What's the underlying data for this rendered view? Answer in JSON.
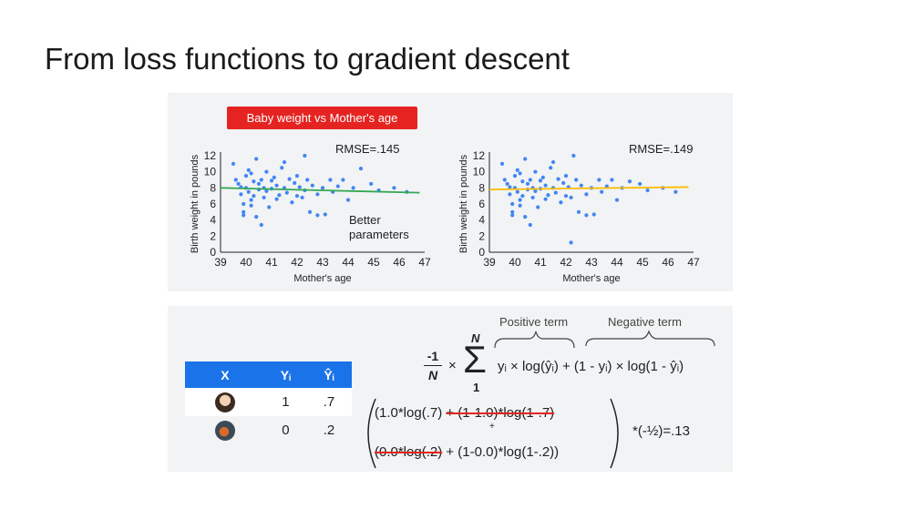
{
  "title": "From loss functions to gradient descent",
  "badge": "Baby weight vs Mother's age",
  "colors": {
    "accent_blue": "#1a73e8",
    "badge_red": "#e52421",
    "green_line": "#34a853",
    "yellow_line": "#fbbc04",
    "dot": "#4285f4"
  },
  "chart_data": [
    {
      "type": "scatter",
      "xlabel": "Mother's age",
      "ylabel": "Birth weight in pounds",
      "xlim": [
        39,
        47
      ],
      "ylim": [
        0,
        12
      ],
      "xticks": [
        39,
        40,
        41,
        42,
        43,
        44,
        45,
        46,
        47
      ],
      "yticks": [
        0,
        2,
        4,
        6,
        8,
        10,
        12
      ],
      "annotation": "RMSE=.145",
      "note": [
        "Better",
        "parameters"
      ],
      "fit_line": {
        "x": [
          39,
          46.8
        ],
        "y": [
          8.0,
          7.4
        ],
        "color": "#34a853"
      },
      "points": [
        [
          39.5,
          11.0
        ],
        [
          39.6,
          9.0
        ],
        [
          39.7,
          8.5
        ],
        [
          39.8,
          8.1
        ],
        [
          39.8,
          7.2
        ],
        [
          39.9,
          6.0
        ],
        [
          39.9,
          5.0
        ],
        [
          40.0,
          9.5
        ],
        [
          40.0,
          8.0
        ],
        [
          40.1,
          7.5
        ],
        [
          40.1,
          10.2
        ],
        [
          40.2,
          6.5
        ],
        [
          40.2,
          9.8
        ],
        [
          40.3,
          8.8
        ],
        [
          40.3,
          7.0
        ],
        [
          40.4,
          4.4
        ],
        [
          40.4,
          11.6
        ],
        [
          40.5,
          8.5
        ],
        [
          40.5,
          7.8
        ],
        [
          40.6,
          3.4
        ],
        [
          40.6,
          9.0
        ],
        [
          40.7,
          6.8
        ],
        [
          40.7,
          8.0
        ],
        [
          40.8,
          10.0
        ],
        [
          40.8,
          7.6
        ],
        [
          40.9,
          5.6
        ],
        [
          41.0,
          8.9
        ],
        [
          41.0,
          7.9
        ],
        [
          41.1,
          9.3
        ],
        [
          41.2,
          6.6
        ],
        [
          41.2,
          8.3
        ],
        [
          41.3,
          7.1
        ],
        [
          41.4,
          10.5
        ],
        [
          41.5,
          8.0
        ],
        [
          41.6,
          7.4
        ],
        [
          41.7,
          9.1
        ],
        [
          41.8,
          6.2
        ],
        [
          41.9,
          8.6
        ],
        [
          42.0,
          7.0
        ],
        [
          42.0,
          9.5
        ],
        [
          42.1,
          8.1
        ],
        [
          42.2,
          6.8
        ],
        [
          42.3,
          12.0
        ],
        [
          42.3,
          7.7
        ],
        [
          42.4,
          9.0
        ],
        [
          42.5,
          5.0
        ],
        [
          42.6,
          8.3
        ],
        [
          42.8,
          7.2
        ],
        [
          43.0,
          8.0
        ],
        [
          43.1,
          4.7
        ],
        [
          43.3,
          9.0
        ],
        [
          43.4,
          7.5
        ],
        [
          43.6,
          8.2
        ],
        [
          43.8,
          9.0
        ],
        [
          44.0,
          6.5
        ],
        [
          44.2,
          8.0
        ],
        [
          44.5,
          10.4
        ],
        [
          44.9,
          8.5
        ],
        [
          45.2,
          7.7
        ],
        [
          45.8,
          8.0
        ],
        [
          46.3,
          7.5
        ],
        [
          39.9,
          4.6
        ],
        [
          40.2,
          5.8
        ],
        [
          41.5,
          11.2
        ],
        [
          42.8,
          4.6
        ]
      ]
    },
    {
      "type": "scatter",
      "xlabel": "Mother's age",
      "ylabel": "Birth weight in pounds",
      "xlim": [
        39,
        47
      ],
      "ylim": [
        0,
        12
      ],
      "xticks": [
        39,
        40,
        41,
        42,
        43,
        44,
        45,
        46,
        47
      ],
      "yticks": [
        0,
        2,
        4,
        6,
        8,
        10,
        12
      ],
      "annotation": "RMSE=.149",
      "fit_line": {
        "x": [
          39,
          46.8
        ],
        "y": [
          7.8,
          8.1
        ],
        "color": "#fbbc04"
      },
      "points": [
        [
          39.5,
          11.0
        ],
        [
          39.6,
          9.0
        ],
        [
          39.7,
          8.5
        ],
        [
          39.8,
          8.1
        ],
        [
          39.8,
          7.2
        ],
        [
          39.9,
          6.0
        ],
        [
          39.9,
          5.0
        ],
        [
          40.0,
          9.5
        ],
        [
          40.0,
          8.0
        ],
        [
          40.1,
          7.5
        ],
        [
          40.1,
          10.2
        ],
        [
          40.2,
          6.5
        ],
        [
          40.2,
          9.8
        ],
        [
          40.3,
          8.8
        ],
        [
          40.3,
          7.0
        ],
        [
          40.4,
          4.4
        ],
        [
          40.4,
          11.6
        ],
        [
          40.5,
          8.5
        ],
        [
          40.5,
          7.8
        ],
        [
          40.6,
          3.4
        ],
        [
          40.6,
          9.0
        ],
        [
          40.7,
          6.8
        ],
        [
          40.7,
          8.0
        ],
        [
          40.8,
          10.0
        ],
        [
          40.8,
          7.6
        ],
        [
          40.9,
          5.6
        ],
        [
          41.0,
          8.9
        ],
        [
          41.0,
          7.9
        ],
        [
          41.1,
          9.3
        ],
        [
          41.2,
          6.6
        ],
        [
          41.2,
          8.3
        ],
        [
          41.3,
          7.1
        ],
        [
          41.4,
          10.5
        ],
        [
          41.5,
          8.0
        ],
        [
          41.6,
          7.4
        ],
        [
          41.7,
          9.1
        ],
        [
          41.8,
          6.2
        ],
        [
          41.9,
          8.6
        ],
        [
          42.0,
          7.0
        ],
        [
          42.0,
          9.5
        ],
        [
          42.1,
          8.1
        ],
        [
          42.2,
          6.8
        ],
        [
          42.3,
          12.0
        ],
        [
          42.2,
          1.2
        ],
        [
          42.4,
          9.0
        ],
        [
          42.5,
          5.0
        ],
        [
          42.6,
          8.3
        ],
        [
          42.8,
          7.2
        ],
        [
          43.0,
          8.0
        ],
        [
          43.1,
          4.7
        ],
        [
          43.3,
          9.0
        ],
        [
          43.4,
          7.5
        ],
        [
          43.6,
          8.2
        ],
        [
          43.8,
          9.0
        ],
        [
          44.0,
          6.5
        ],
        [
          44.2,
          8.0
        ],
        [
          44.5,
          8.8
        ],
        [
          44.9,
          8.5
        ],
        [
          45.2,
          7.7
        ],
        [
          45.8,
          8.0
        ],
        [
          46.3,
          7.5
        ],
        [
          39.9,
          4.6
        ],
        [
          40.2,
          5.8
        ],
        [
          41.5,
          11.2
        ],
        [
          42.8,
          4.6
        ]
      ]
    }
  ],
  "formula": {
    "numerator": "-1",
    "denominator": "N",
    "times": "×",
    "sigma": "Σ",
    "sum_top": "N",
    "sum_bottom": "1",
    "positive_label": "Positive term",
    "negative_label": "Negative term",
    "expression": "yᵢ × log(ŷᵢ) + (1 - yᵢ) × log(1 - ŷᵢ)",
    "line1_a": "(1.0*log(.7) ",
    "line1_strike": "+ (1-1.0)*log(1-.7)",
    "plus": "+",
    "line2_strike": "(0.0*log(.2)",
    "line2_b": " + (1-0.0)*log(1-.2))",
    "result": "*(-½)=.13"
  },
  "table": {
    "headers": [
      "X",
      "Yᵢ",
      "Ŷᵢ"
    ],
    "rows": [
      {
        "avatar": "child-photo-icon",
        "y": "1",
        "yhat": ".7"
      },
      {
        "avatar": "food-photo-icon",
        "y": "0",
        "yhat": ".2"
      }
    ]
  }
}
